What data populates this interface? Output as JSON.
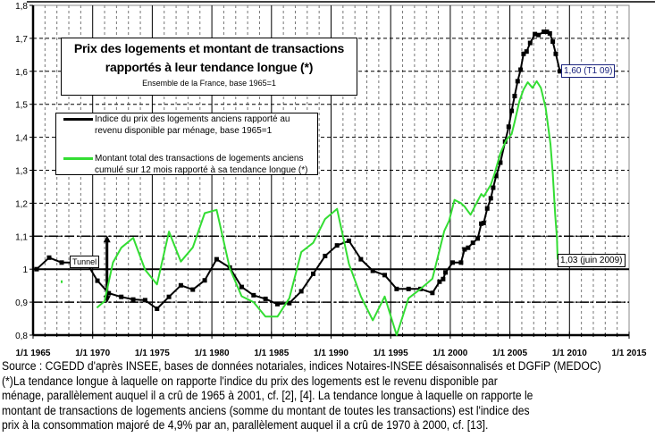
{
  "chart_data": {
    "type": "line",
    "title": "Prix des logements et montant de transactions rapportés à leur tendance longue (*)",
    "subtitle": "Ensemble de la France, base 1965=1",
    "xlabel": "",
    "ylabel": "",
    "xlim": [
      1965,
      2015
    ],
    "ylim": [
      0.8,
      1.8
    ],
    "x_ticks": [
      1965,
      1970,
      1975,
      1980,
      1985,
      1990,
      1995,
      2000,
      2005,
      2010,
      2015
    ],
    "x_tick_labels": [
      "1/1 1965",
      "1/1 1970",
      "1/1 1975",
      "1/1 1980",
      "1/1 1985",
      "1/1 1990",
      "1/1 1995",
      "1/1 2000",
      "1/1 2005",
      "1/1 2010",
      "1/1 2015"
    ],
    "y_ticks": [
      0.8,
      0.9,
      1.0,
      1.1,
      1.2,
      1.3,
      1.4,
      1.5,
      1.6,
      1.7,
      1.8
    ],
    "y_tick_labels": [
      "0,8",
      "0,9",
      "1",
      "1,1",
      "1,2",
      "1,3",
      "1,4",
      "1,5",
      "1,6",
      "1,7",
      "1,8"
    ],
    "grid": true,
    "reference_lines": {
      "solid": 1.0,
      "dash_dot": [
        0.9,
        1.1
      ]
    },
    "series": [
      {
        "name": "Indice du prix des logements anciens rapporté au revenu disponible par ménage, base 1965=1",
        "legend_lines": [
          "Indice du prix des logements anciens rapporté au",
          "revenu disponible par ménage, base 1965=1"
        ],
        "color": "#000000",
        "marker": "square",
        "x": [
          1965.3,
          1966.35,
          1967.4,
          1968.4,
          1969.4,
          1970.4,
          1971.35,
          1972.4,
          1973.4,
          1974.4,
          1975.4,
          1976.4,
          1977.4,
          1978.4,
          1979.4,
          1980.4,
          1981.5,
          1982.5,
          1983.5,
          1984.5,
          1985.5,
          1986.5,
          1987.5,
          1988.5,
          1989.5,
          1990.5,
          1991.5,
          1992.5,
          1993.5,
          1994.5,
          1995.5,
          1996.5,
          1997.5,
          1998.5,
          1999.1,
          1999.4,
          1999.6,
          2000.2,
          2000.9,
          2001.2,
          2001.5,
          2001.9,
          2002.3,
          2002.6,
          2002.8,
          2003.1,
          2003.4,
          2003.6,
          2003.85,
          2004.2,
          2004.6,
          2004.9,
          2005.15,
          2005.4,
          2005.65,
          2005.9,
          2006.15,
          2006.4,
          2006.7,
          2007.1,
          2007.4,
          2007.85,
          2008.1,
          2008.35,
          2008.6,
          2008.85,
          2009.2
        ],
        "y": [
          1.0,
          1.035,
          1.02,
          1.02,
          1.025,
          0.965,
          0.927,
          0.916,
          0.908,
          0.906,
          0.88,
          0.916,
          0.951,
          0.938,
          0.966,
          1.03,
          1.005,
          0.946,
          0.921,
          0.91,
          0.894,
          0.897,
          0.933,
          0.986,
          1.04,
          1.072,
          1.086,
          1.03,
          0.995,
          0.982,
          0.94,
          0.94,
          0.94,
          0.928,
          0.962,
          0.97,
          0.99,
          1.02,
          1.02,
          1.06,
          1.065,
          1.08,
          1.093,
          1.138,
          1.14,
          1.184,
          1.215,
          1.247,
          1.283,
          1.323,
          1.387,
          1.432,
          1.48,
          1.525,
          1.57,
          1.605,
          1.653,
          1.66,
          1.686,
          1.713,
          1.71,
          1.72,
          1.72,
          1.715,
          1.69,
          1.653,
          1.6
        ],
        "end_label": "1,60 (T1 09)"
      },
      {
        "name": "Montant total des transactions de logements anciens cumulé sur 12 mois rapporté à sa tendance longue (*)",
        "legend_lines": [
          "Montant total des transactions de logements anciens",
          "cumulé sur 12 mois rapporté à sa tendance longue (*)"
        ],
        "color": "#33dd33",
        "marker": "none",
        "isolated_point": {
          "x": 1967.4,
          "y": 0.962
        },
        "x": [
          1970.35,
          1971.0,
          1971.7,
          1972.4,
          1973.4,
          1974.4,
          1975.4,
          1976.4,
          1977.4,
          1978.4,
          1979.4,
          1980.4,
          1981.5,
          1982.5,
          1983.5,
          1984.5,
          1985.5,
          1986.5,
          1987.5,
          1988.5,
          1989.5,
          1990.5,
          1991.5,
          1992.5,
          1993.5,
          1994.5,
          1995.5,
          1996.5,
          1997.5,
          1998.5,
          1999.5,
          1999.9,
          2000.35,
          2000.9,
          2001.2,
          2001.7,
          2002.2,
          2002.6,
          2002.8,
          2003.4,
          2003.7,
          2004.2,
          2004.7,
          2005.15,
          2005.4,
          2005.8,
          2006.15,
          2006.5,
          2006.9,
          2007.25,
          2007.6,
          2008.0,
          2008.4,
          2008.6,
          2008.8,
          2008.95,
          2009.0
        ],
        "y": [
          0.883,
          0.903,
          1.02,
          1.065,
          1.095,
          0.998,
          0.954,
          1.114,
          1.023,
          1.066,
          1.17,
          1.18,
          1.003,
          0.918,
          0.9,
          0.856,
          0.856,
          0.912,
          1.052,
          1.08,
          1.152,
          1.183,
          1.016,
          0.917,
          0.845,
          0.917,
          0.8,
          0.912,
          0.94,
          0.971,
          1.116,
          1.147,
          1.21,
          1.2,
          1.19,
          1.165,
          1.2,
          1.228,
          1.22,
          1.256,
          1.288,
          1.351,
          1.392,
          1.41,
          1.446,
          1.51,
          1.545,
          1.567,
          1.55,
          1.57,
          1.55,
          1.49,
          1.38,
          1.29,
          1.165,
          1.093,
          1.03
        ],
        "end_label": "1,03 (juin 2009)"
      }
    ],
    "annotations": [
      {
        "text": "Tunnel",
        "x": 1971.2,
        "y_range": [
          0.9,
          1.1
        ]
      }
    ],
    "legend_position": "upper-left"
  },
  "footer": {
    "source": "Source : CGEDD d'après INSEE, bases de données notariales, indices Notaires-INSEE désaisonnalisés et DGFiP (MEDOC)",
    "note_lines": [
      "(*)La tendance longue à laquelle on rapporte l'indice du prix des logements est le revenu disponible par",
      "ménage, parallèlement auquel il a crû de 1965 à 2001, cf. [2], [4].  La tendance longue à laquelle on rapporte le",
      "montant de transactions de logements anciens (somme du montant de toutes les transactions) est l'indice des",
      "prix à la consommation majoré de 4,9% par an, parallèlement auquel il a crû de 1970 à 2000, cf. [13]."
    ]
  }
}
